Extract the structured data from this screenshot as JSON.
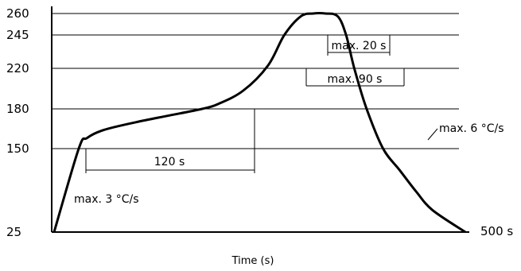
{
  "chart_data": {
    "type": "line",
    "title": "",
    "xlabel": "Time (s)",
    "ylabel": "",
    "x_end_label": "500 s",
    "y_ticks": [
      25,
      150,
      180,
      220,
      245,
      260
    ],
    "y_tick_labels": [
      "25",
      "150",
      "180",
      "220",
      "245",
      "260"
    ],
    "gridlines": [
      150,
      180,
      220,
      245,
      260
    ],
    "series": [
      {
        "values_note": "",
        "x": [
          0,
          30,
          40,
          60,
          100,
          140,
          180,
          200,
          230,
          260,
          280,
          300,
          315,
          330,
          345,
          355,
          365,
          380,
          400,
          420,
          440,
          460,
          500
        ],
        "y": [
          25,
          150,
          158,
          164,
          170,
          175,
          180,
          185,
          198,
          222,
          245,
          258,
          260,
          260,
          258,
          245,
          220,
          180,
          150,
          118,
          86,
          58,
          25
        ]
      }
    ],
    "annotations": [
      {
        "text": "max. 3 °C/s"
      },
      {
        "text": "120 s"
      },
      {
        "text": "max. 90 s"
      },
      {
        "text": "max. 20 s"
      },
      {
        "text": "max. 6 °C/s"
      }
    ]
  }
}
